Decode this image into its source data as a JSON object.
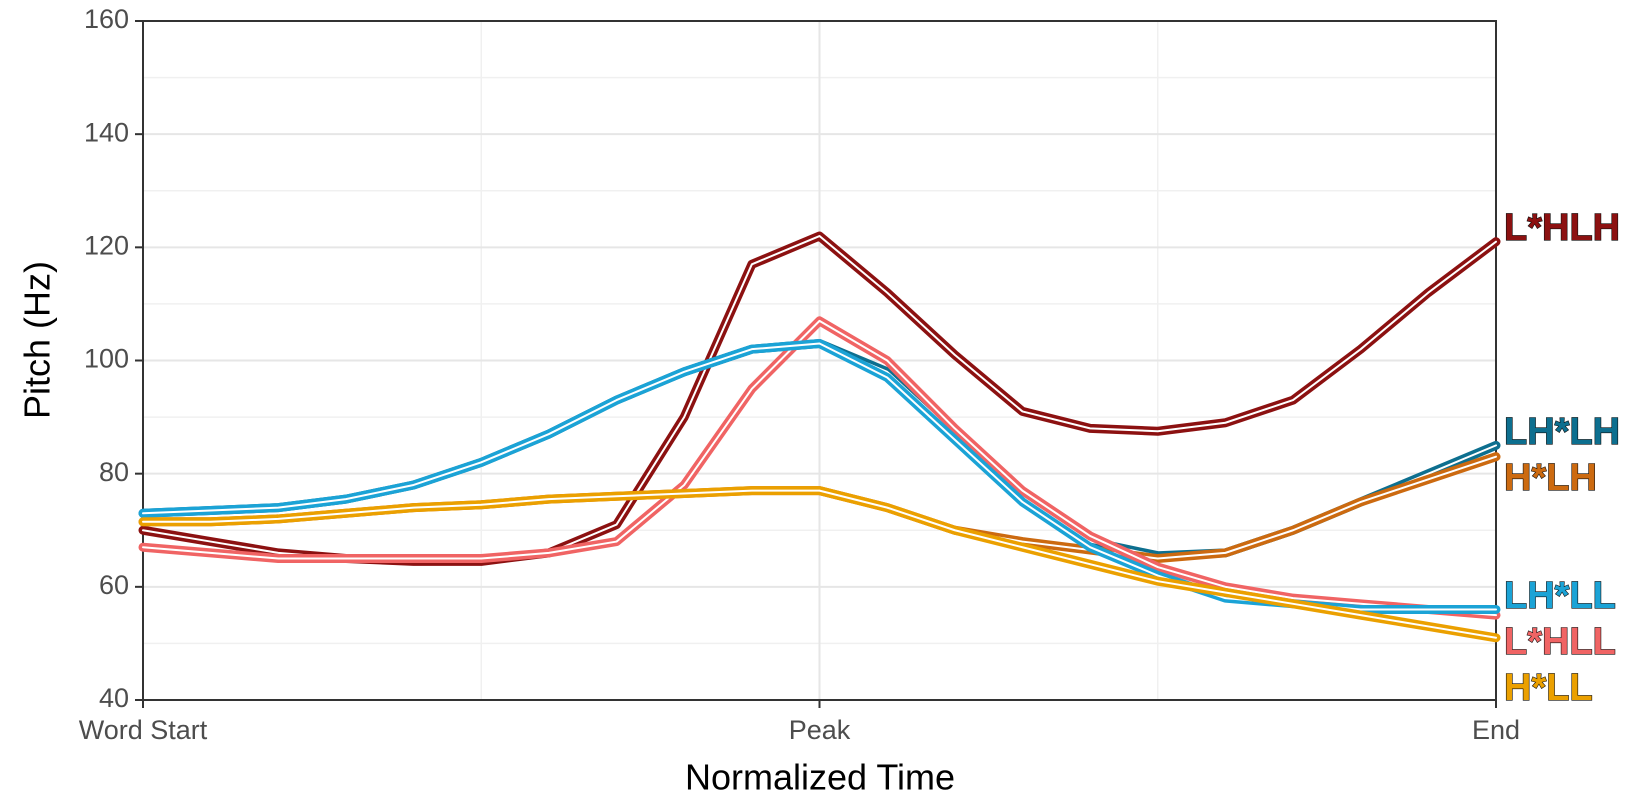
{
  "chart_data": {
    "type": "line",
    "x_label": "Normalized Time",
    "y_label": "Pitch (Hz)",
    "x": [
      0,
      0.1,
      0.2,
      0.3,
      0.4,
      0.5,
      0.6,
      0.7,
      0.8,
      0.9,
      1.0,
      1.1,
      1.2,
      1.3,
      1.4,
      1.5,
      1.6,
      1.7,
      1.8,
      1.9,
      2.0
    ],
    "xlim": [
      0,
      2
    ],
    "xticks": [
      {
        "value": 0,
        "label": "Word Start"
      },
      {
        "value": 1,
        "label": "Peak"
      },
      {
        "value": 2,
        "label": "End"
      }
    ],
    "ylim": [
      40,
      160
    ],
    "yticks": [
      40,
      60,
      80,
      100,
      120,
      140,
      160
    ],
    "grid": true,
    "series": [
      {
        "name": "L*HLH",
        "color": "#8c1111",
        "values": [
          70,
          68,
          66,
          65,
          64.5,
          64.5,
          66,
          71,
          90,
          117,
          122,
          112,
          101,
          91,
          88,
          87.5,
          89,
          93,
          102,
          112,
          121
        ]
      },
      {
        "name": "LH*LH",
        "color": "#0d6f8f",
        "values": [
          73,
          73.5,
          74,
          75.5,
          78,
          82,
          87,
          93,
          98,
          102,
          103,
          98,
          87,
          76,
          68,
          65.5,
          66,
          70,
          75,
          80,
          85
        ]
      },
      {
        "name": "H*LH",
        "color": "#cc6a10",
        "values": [
          71.5,
          71.5,
          72,
          73,
          74,
          74.5,
          75.5,
          76,
          76.5,
          77,
          77,
          74,
          70,
          68,
          66.5,
          65,
          66,
          70,
          75,
          79,
          83
        ]
      },
      {
        "name": "L*HLL",
        "color": "#f06464",
        "values": [
          67,
          66,
          65,
          65,
          65,
          65,
          66,
          68,
          78,
          95,
          107,
          100,
          88,
          77,
          69,
          63.5,
          60,
          58,
          57,
          56,
          55
        ]
      },
      {
        "name": "LH*LL",
        "color": "#1ba3d6",
        "values": [
          73,
          73.5,
          74,
          75.5,
          78,
          82,
          87,
          93,
          98,
          102,
          103,
          97,
          86,
          75,
          67,
          62,
          58,
          57,
          56,
          56,
          56
        ]
      },
      {
        "name": "H*LL",
        "color": "#eba000",
        "values": [
          71.5,
          71.5,
          72,
          73,
          74,
          74.5,
          75.5,
          76,
          76.5,
          77,
          77,
          74,
          70,
          67,
          64,
          61,
          59,
          57,
          55,
          53,
          51
        ]
      }
    ]
  }
}
